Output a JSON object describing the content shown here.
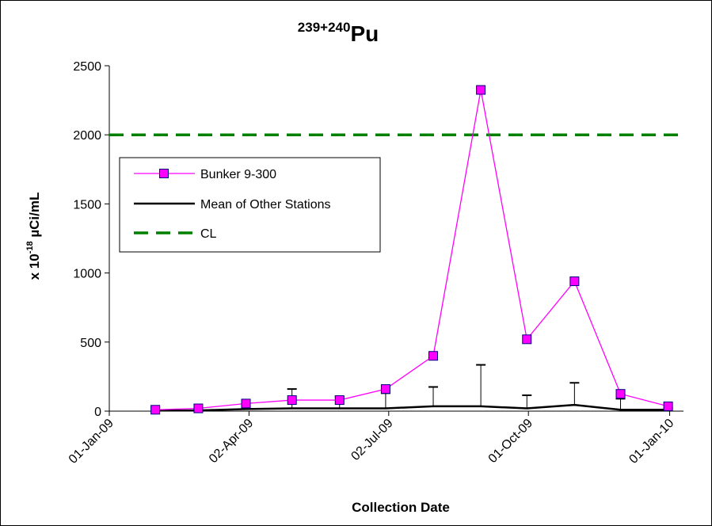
{
  "chart_data": {
    "type": "line",
    "title_sup": "239+240",
    "title_main": "Pu",
    "xlabel": "Collection Date",
    "ylabel_prefix": "x 10",
    "ylabel_exp": "-18",
    "ylabel_unit": " µCi/mL",
    "xlim": [
      "2009-01-01",
      "2010-01-10"
    ],
    "ylim": [
      0,
      2500
    ],
    "yticks": [
      0,
      500,
      1000,
      1500,
      2000,
      2500
    ],
    "xticks": [
      {
        "date": "2009-01-01",
        "label": "01-Jan-09"
      },
      {
        "date": "2009-04-02",
        "label": "02-Apr-09"
      },
      {
        "date": "2009-07-02",
        "label": "02-Jul-09"
      },
      {
        "date": "2009-10-01",
        "label": "01-Oct-09"
      },
      {
        "date": "2010-01-01",
        "label": "01-Jan-10"
      }
    ],
    "grid": false,
    "legend_position": "upper-left",
    "series": [
      {
        "name": "Bunker 9-300",
        "color": "#ff00ff",
        "marker": "square",
        "marker_fill": "#ff00ff",
        "points": [
          {
            "x": "2009-01-31",
            "y": 10
          },
          {
            "x": "2009-02-28",
            "y": 20
          },
          {
            "x": "2009-03-31",
            "y": 55
          },
          {
            "x": "2009-04-30",
            "y": 80
          },
          {
            "x": "2009-05-31",
            "y": 80
          },
          {
            "x": "2009-06-30",
            "y": 160
          },
          {
            "x": "2009-07-31",
            "y": 400
          },
          {
            "x": "2009-08-31",
            "y": 2325
          },
          {
            "x": "2009-09-30",
            "y": 520
          },
          {
            "x": "2009-10-31",
            "y": 940
          },
          {
            "x": "2009-11-30",
            "y": 125
          },
          {
            "x": "2009-12-31",
            "y": 35
          }
        ]
      },
      {
        "name": "Mean of Other Stations",
        "color": "#000000",
        "marker": "none",
        "points": [
          {
            "x": "2009-01-31",
            "y": 5,
            "err": 25
          },
          {
            "x": "2009-02-28",
            "y": 5,
            "err": 5
          },
          {
            "x": "2009-03-31",
            "y": 15,
            "err": 10
          },
          {
            "x": "2009-04-30",
            "y": 20,
            "err": 140
          },
          {
            "x": "2009-05-31",
            "y": 20,
            "err": 85
          },
          {
            "x": "2009-06-30",
            "y": 20,
            "err": 110
          },
          {
            "x": "2009-07-31",
            "y": 35,
            "err": 140
          },
          {
            "x": "2009-08-31",
            "y": 35,
            "err": 300
          },
          {
            "x": "2009-09-30",
            "y": 20,
            "err": 95
          },
          {
            "x": "2009-10-31",
            "y": 45,
            "err": 160
          },
          {
            "x": "2009-11-30",
            "y": 10,
            "err": 80
          },
          {
            "x": "2009-12-31",
            "y": 10,
            "err": 10
          }
        ]
      },
      {
        "name": "CL",
        "color": "#008000",
        "marker": "none",
        "dashed": true,
        "points": [
          {
            "x": "2009-01-01",
            "y": 2000
          },
          {
            "x": "2010-01-10",
            "y": 2000
          }
        ]
      }
    ]
  }
}
